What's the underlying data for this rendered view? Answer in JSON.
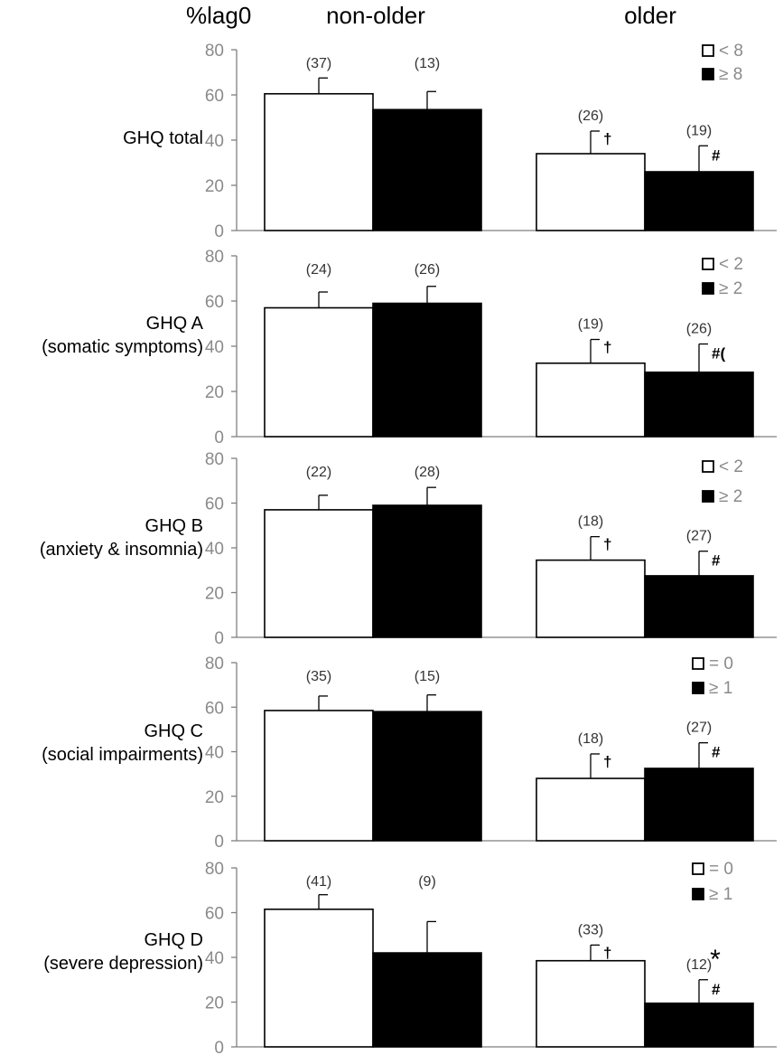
{
  "header": {
    "ylabel": "%lag0",
    "group_labels": [
      "non-older",
      "older"
    ]
  },
  "colors": {
    "bar_fill": [
      "#ffffff",
      "#000000"
    ],
    "outline": "#000000",
    "axis": "#7f7f7f",
    "tick_text": "#8a8a8a"
  },
  "chart_data": [
    {
      "type": "bar",
      "row_label": [
        "GHQ total"
      ],
      "categories": [
        "non-older",
        "older"
      ],
      "legend": [
        "< 8",
        "≥ 8"
      ],
      "legend_position": "top-right",
      "ylim": [
        0,
        80
      ],
      "yticks": [
        0,
        20,
        40,
        60,
        80
      ],
      "series": [
        {
          "name": "< 8",
          "values": [
            60.5,
            34
          ],
          "errors": [
            7,
            10
          ],
          "n": [
            "(37)",
            "(26)"
          ],
          "marks": [
            "",
            "†"
          ]
        },
        {
          "name": "≥ 8",
          "values": [
            53.5,
            26
          ],
          "errors": [
            8,
            11.5
          ],
          "n": [
            "(13)",
            "(19)"
          ],
          "marks": [
            "",
            "#"
          ]
        }
      ]
    },
    {
      "type": "bar",
      "row_label": [
        "GHQ A",
        "(somatic symptoms)"
      ],
      "categories": [
        "non-older",
        "older"
      ],
      "legend": [
        "< 2",
        "≥ 2"
      ],
      "legend_position": "top-right",
      "ylim": [
        0,
        80
      ],
      "yticks": [
        0,
        20,
        40,
        60,
        80
      ],
      "series": [
        {
          "name": "< 2",
          "values": [
            57,
            32.5
          ],
          "errors": [
            7,
            10.5
          ],
          "n": [
            "(24)",
            "(19)"
          ],
          "marks": [
            "",
            "†"
          ]
        },
        {
          "name": "≥ 2",
          "values": [
            59,
            28.5
          ],
          "errors": [
            7.5,
            12.5
          ],
          "n": [
            "(26)",
            "(26)"
          ],
          "marks": [
            "",
            "#("
          ]
        }
      ]
    },
    {
      "type": "bar",
      "row_label": [
        "GHQ B",
        "(anxiety & insomnia)"
      ],
      "categories": [
        "non-older",
        "older"
      ],
      "legend": [
        "< 2",
        "≥ 2"
      ],
      "legend_position": "top-right",
      "ylim": [
        0,
        80
      ],
      "yticks": [
        0,
        20,
        40,
        60,
        80
      ],
      "series": [
        {
          "name": "< 2",
          "values": [
            57,
            34.5
          ],
          "errors": [
            6.5,
            10.5
          ],
          "n": [
            "(22)",
            "(18)"
          ],
          "marks": [
            "",
            "†"
          ]
        },
        {
          "name": "≥ 2",
          "values": [
            59,
            27.5
          ],
          "errors": [
            8,
            11
          ],
          "n": [
            "(28)",
            "(27)"
          ],
          "marks": [
            "",
            "#"
          ]
        }
      ]
    },
    {
      "type": "bar",
      "row_label": [
        "GHQ C",
        "(social impairments)"
      ],
      "categories": [
        "non-older",
        "older"
      ],
      "legend": [
        "= 0",
        "≥ 1"
      ],
      "legend_position": "top-right",
      "ylim": [
        0,
        80
      ],
      "yticks": [
        0,
        20,
        40,
        60,
        80
      ],
      "series": [
        {
          "name": "= 0",
          "values": [
            58.5,
            28
          ],
          "errors": [
            6.5,
            11
          ],
          "n": [
            "(35)",
            "(18)"
          ],
          "marks": [
            "",
            "†"
          ]
        },
        {
          "name": "≥ 1",
          "values": [
            58,
            32.5
          ],
          "errors": [
            7.5,
            11.5
          ],
          "n": [
            "(15)",
            "(27)"
          ],
          "marks": [
            "",
            "#"
          ]
        }
      ]
    },
    {
      "type": "bar",
      "row_label": [
        "GHQ D",
        "(severe depression)"
      ],
      "categories": [
        "non-older",
        "older"
      ],
      "legend": [
        "= 0",
        "≥ 1"
      ],
      "legend_position": "top-right",
      "ylim": [
        0,
        80
      ],
      "yticks": [
        0,
        20,
        40,
        60,
        80
      ],
      "star": "*",
      "series": [
        {
          "name": "= 0",
          "values": [
            61.5,
            38.5
          ],
          "errors": [
            6.5,
            7
          ],
          "n": [
            "(41)",
            "(33)"
          ],
          "marks": [
            "",
            "†"
          ]
        },
        {
          "name": "≥ 1",
          "values": [
            42,
            19.5
          ],
          "errors": [
            14,
            10.5
          ],
          "n": [
            "(9)",
            "(12)"
          ],
          "marks": [
            "",
            "#"
          ]
        }
      ]
    }
  ]
}
